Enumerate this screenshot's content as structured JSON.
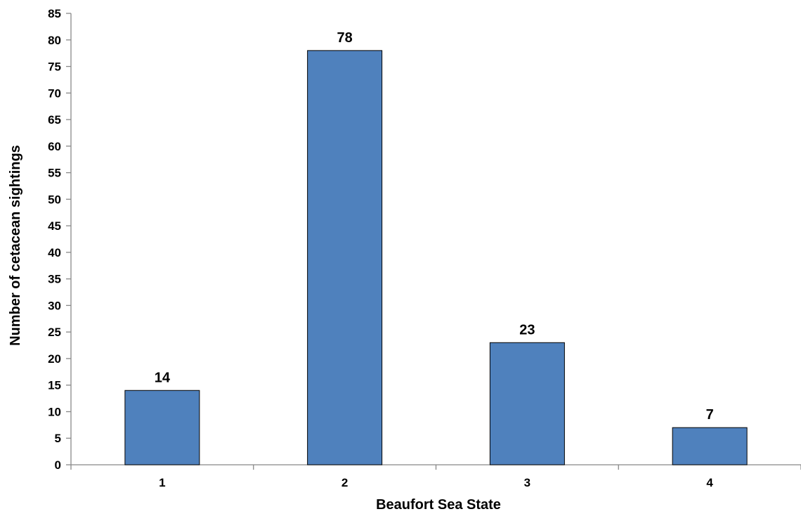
{
  "chart_data": {
    "type": "bar",
    "categories": [
      "1",
      "2",
      "3",
      "4"
    ],
    "values": [
      14,
      78,
      23,
      7
    ],
    "data_labels": [
      "14",
      "78",
      "23",
      "7"
    ],
    "title": "",
    "xlabel": "Beaufort Sea State",
    "ylabel": "Number of cetacean sightings",
    "ylim": [
      0,
      85
    ],
    "yticks": [
      "0",
      "5",
      "10",
      "15",
      "20",
      "25",
      "30",
      "35",
      "40",
      "45",
      "50",
      "55",
      "60",
      "65",
      "70",
      "75",
      "80",
      "85"
    ],
    "grid": false,
    "legend": "none",
    "bar_color": "#4F81BD",
    "bar_edge_color": "#000000"
  }
}
